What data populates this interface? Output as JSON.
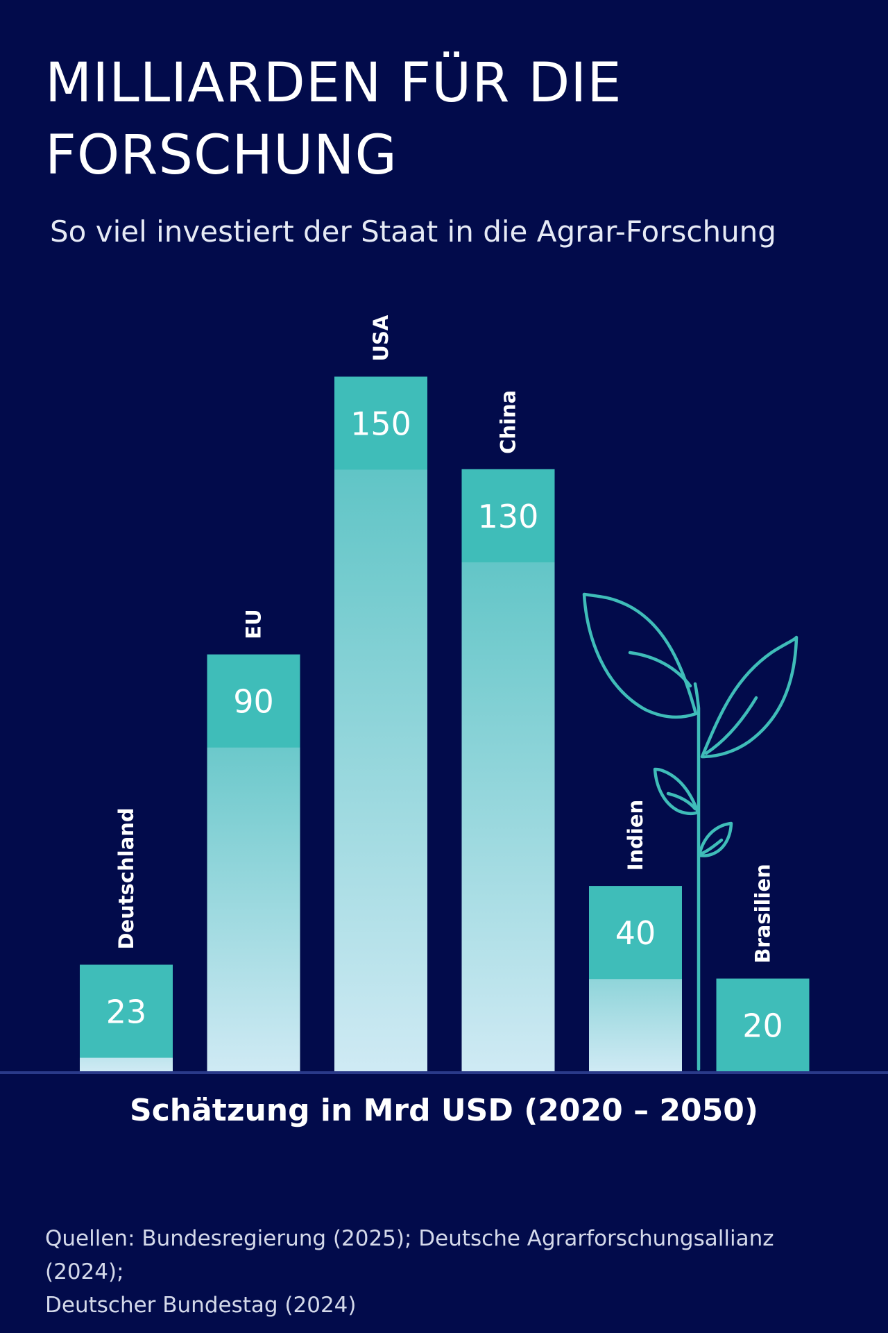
{
  "header": {
    "title_line1": "MILLIARDEN FÜR DIE",
    "title_line2": "FORSCHUNG",
    "subtitle": "So viel investiert der Staat in die Agrar-Forschung"
  },
  "source": {
    "line1": "Quellen: Bundesregierung (2025); Deutsche Agrarforschungsallianz (2024);",
    "line2": "Deutscher Bundestag (2024)"
  },
  "colors": {
    "background": "#020b4b",
    "bar_cap": "#3fbdb9",
    "bar_gradient_top": "#4fbfbf",
    "bar_gradient_bottom": "#cfeaf4",
    "baseline": "#2a3a8a",
    "plant": "#3fbdb9"
  },
  "decoration": {
    "icon": "plant-sprout-icon"
  },
  "chart_data": {
    "type": "bar",
    "title": "MILLIARDEN FÜR DIE FORSCHUNG",
    "subtitle": "So viel investiert der Staat in die Agrar-Forschung",
    "xlabel": "Schätzung in Mrd USD (2020 – 2050)",
    "ylabel": "",
    "categories": [
      "Deutschland",
      "EU",
      "USA",
      "China",
      "Indien",
      "Brasilien"
    ],
    "values": [
      23,
      90,
      150,
      130,
      40,
      20
    ],
    "ylim": [
      0,
      150
    ],
    "grid": false,
    "legend": "none",
    "data_labels": [
      "23",
      "90",
      "150",
      "130",
      "40",
      "20"
    ]
  }
}
